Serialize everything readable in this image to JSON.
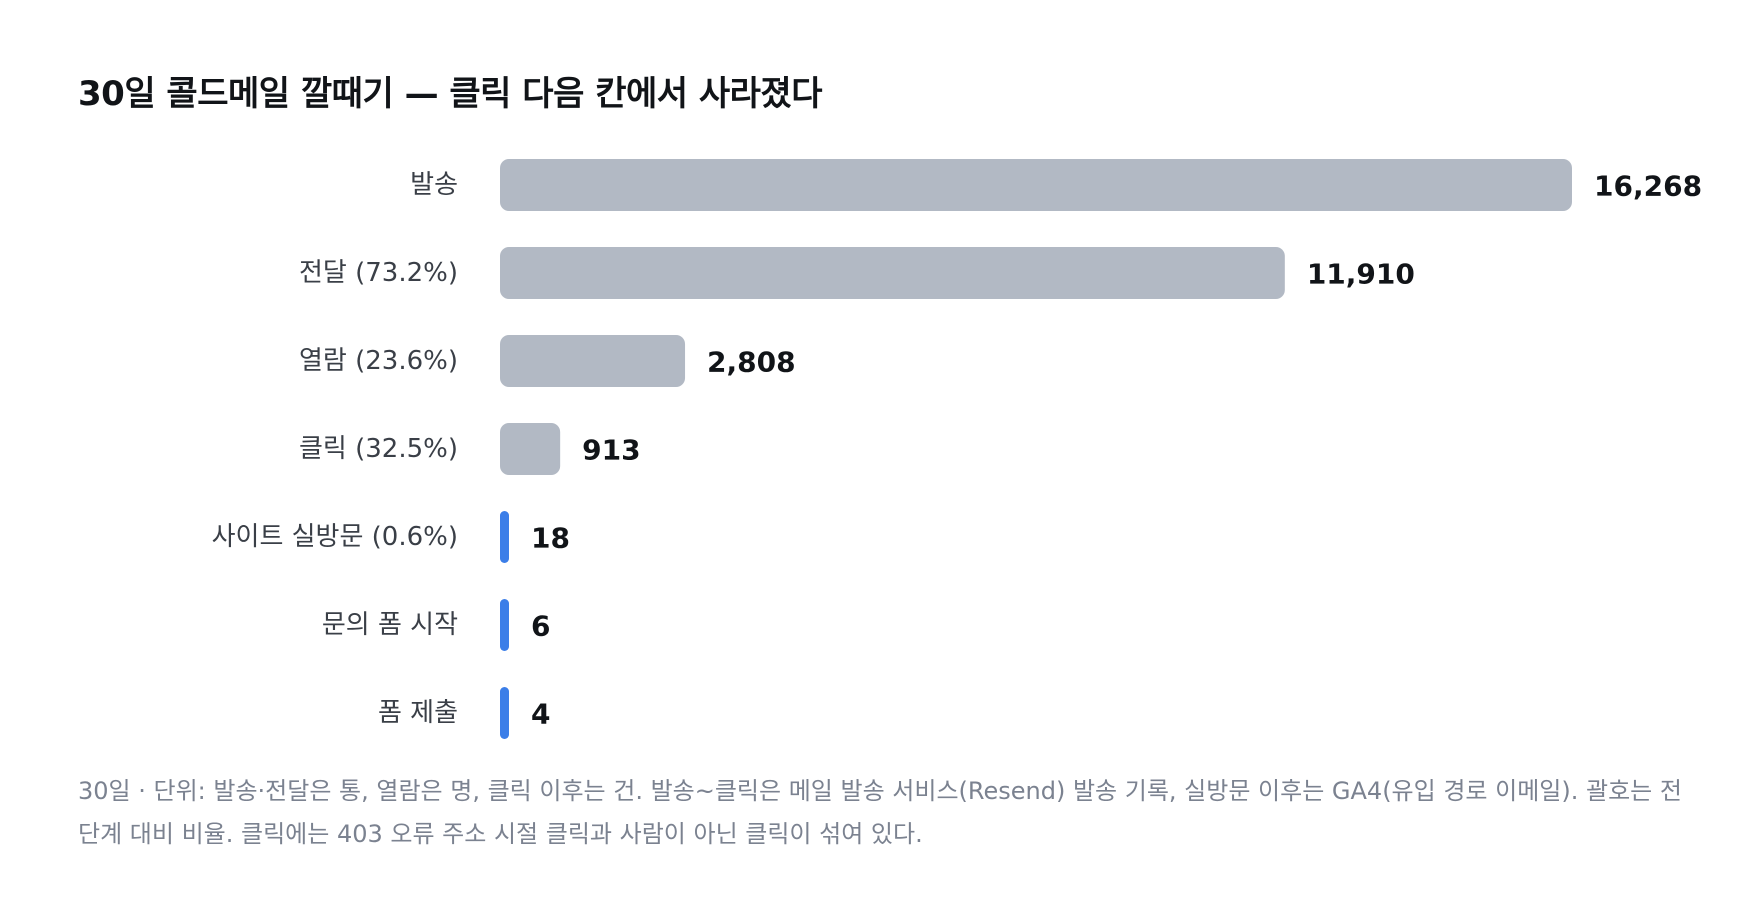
{
  "chart_data": {
    "type": "bar",
    "orientation": "horizontal",
    "title": "30일 콜드메일 깔때기 — 클릭 다음 칸에서 사라졌다",
    "categories": [
      "발송",
      "전달 (73.2%)",
      "열람 (23.6%)",
      "클릭 (32.5%)",
      "사이트 실방문 (0.6%)",
      "문의 폼 시작",
      "폼 제출"
    ],
    "values": [
      16268,
      11910,
      2808,
      913,
      18,
      6,
      4
    ],
    "value_labels": [
      "16,268",
      "11,910",
      "2,808",
      "913",
      "18",
      "6",
      "4"
    ],
    "colors": [
      "#b2b9c4",
      "#b2b9c4",
      "#b2b9c4",
      "#b2b9c4",
      "#3b7ee8",
      "#3b7ee8",
      "#3b7ee8"
    ],
    "xlim": [
      0,
      16268
    ],
    "grid": false,
    "legend": "none",
    "note": "30일 · 단위: 발송·전달은 통, 열람은 명, 클릭 이후는 건. 발송~클릭은 메일 발송 서비스(Resend) 발송 기록, 실방문 이후는 GA4(유입 경로 이메일). 괄호는 전 단계 대비 비율. 클릭에는 403 오류 주소 시절 클릭과 사람이 아닌 클릭이 섞여 있다."
  }
}
